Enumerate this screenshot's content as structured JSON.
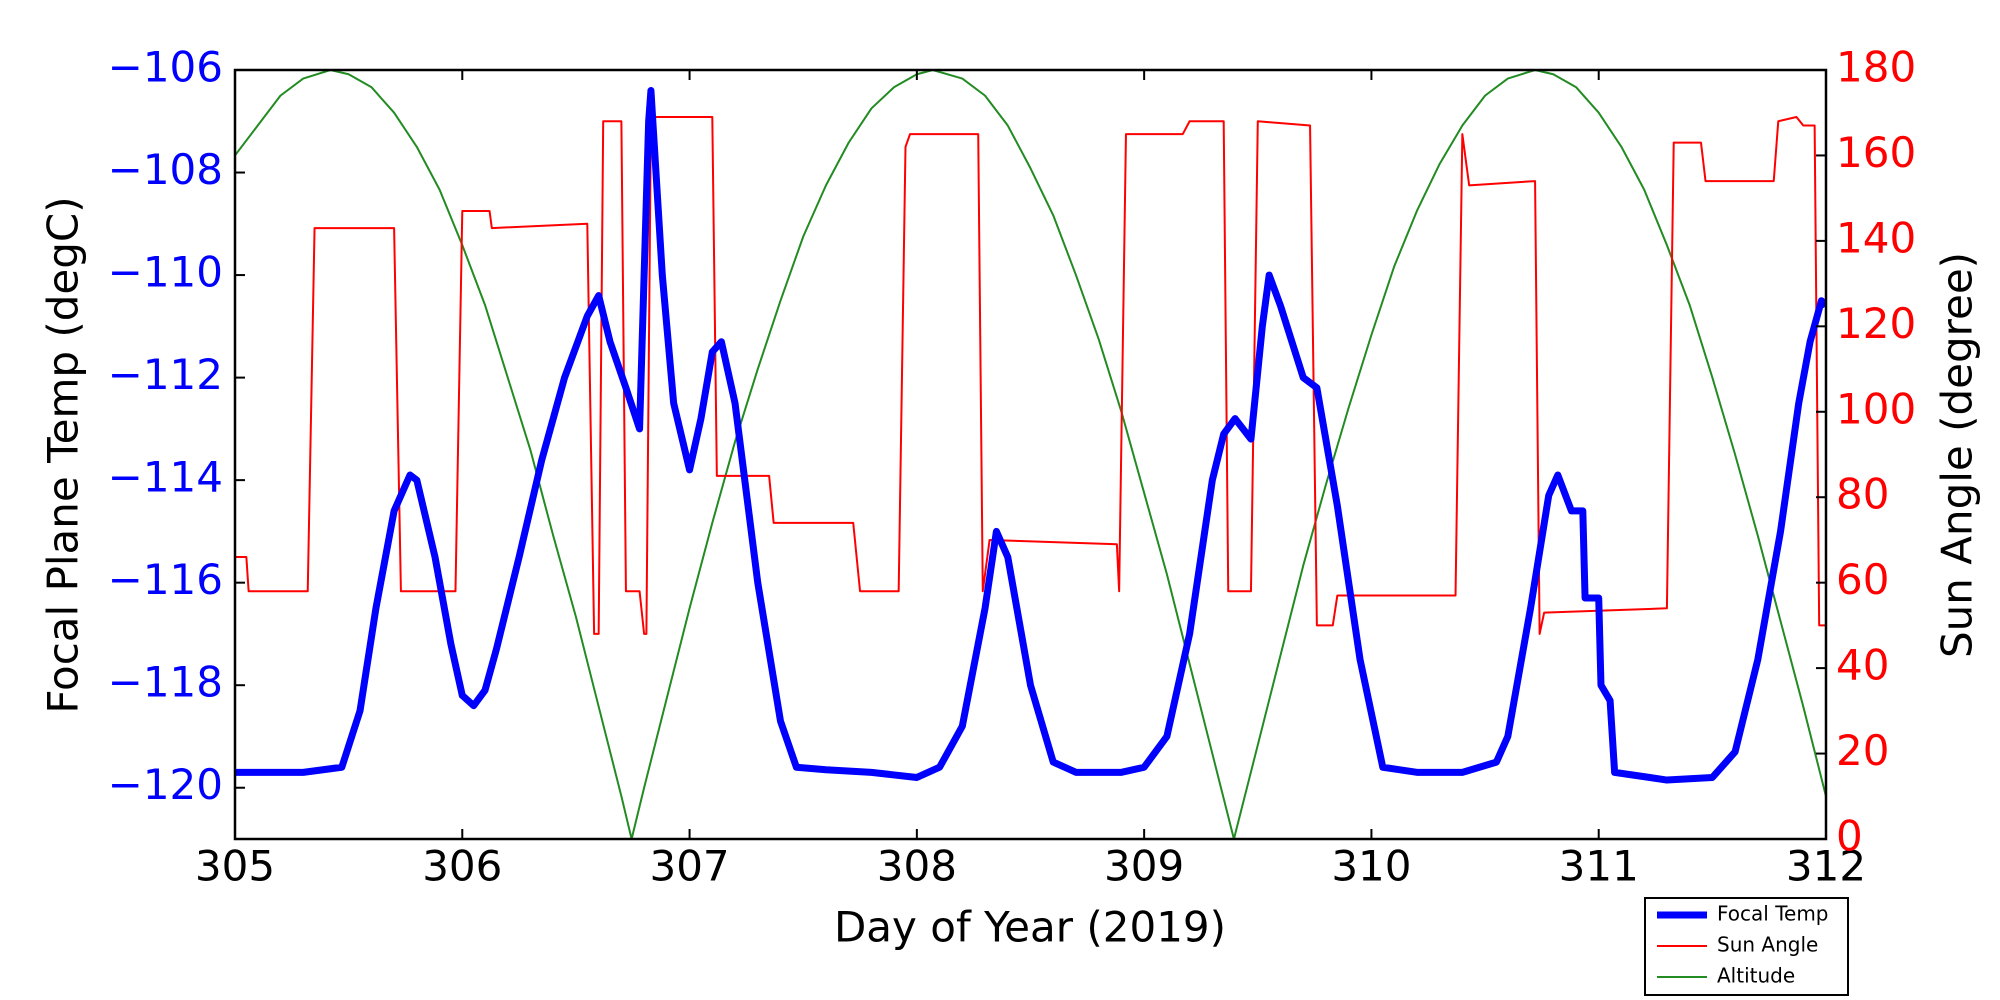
{
  "chart_data": {
    "type": "line",
    "xlabel": "Day of Year (2019)",
    "ylabel": "Focal Plane Temp (degC)",
    "y2label": "Sun Angle (degree)",
    "xlim": [
      305,
      312
    ],
    "ylim": [
      -121,
      -106
    ],
    "y2lim": [
      0,
      180
    ],
    "xticks": [
      305,
      306,
      307,
      308,
      309,
      310,
      311,
      312
    ],
    "yticks": [
      {
        "value": -120,
        "label": "−120"
      },
      {
        "value": -118,
        "label": "−118"
      },
      {
        "value": -116,
        "label": "−116"
      },
      {
        "value": -114,
        "label": "−114"
      },
      {
        "value": -112,
        "label": "−112"
      },
      {
        "value": -110,
        "label": "−110"
      },
      {
        "value": -108,
        "label": "−108"
      },
      {
        "value": -106,
        "label": "−106"
      }
    ],
    "y2ticks": [
      0,
      20,
      40,
      60,
      80,
      100,
      120,
      140,
      160,
      180
    ],
    "ytick_color": "#0000ff",
    "y2tick_color": "#ff0000",
    "grid": false,
    "legend": "lower right",
    "series": [
      {
        "name": "Focal Temp",
        "color": "#0000ff",
        "line_width": 7,
        "axis": "y",
        "x": [
          305.0,
          305.3,
          305.47,
          305.55,
          305.62,
          305.7,
          305.77,
          305.8,
          305.88,
          305.95,
          306.0,
          306.05,
          306.1,
          306.15,
          306.25,
          306.35,
          306.45,
          306.55,
          306.6,
          306.65,
          306.72,
          306.78,
          306.82,
          306.83,
          306.88,
          306.93,
          307.0,
          307.05,
          307.1,
          307.14,
          307.2,
          307.3,
          307.4,
          307.47,
          307.6,
          307.8,
          308.0,
          308.1,
          308.2,
          308.3,
          308.35,
          308.4,
          308.5,
          308.6,
          308.7,
          308.9,
          309.0,
          309.1,
          309.2,
          309.3,
          309.35,
          309.4,
          309.47,
          309.52,
          309.55,
          309.6,
          309.7,
          309.76,
          309.85,
          309.95,
          310.05,
          310.2,
          310.4,
          310.55,
          310.6,
          310.7,
          310.78,
          310.82,
          310.88,
          310.93,
          310.94,
          311.0,
          311.01,
          311.05,
          311.07,
          311.3,
          311.5,
          311.6,
          311.7,
          311.8,
          311.88,
          311.93,
          311.98,
          312.0
        ],
        "values": [
          -119.7,
          -119.7,
          -119.6,
          -118.5,
          -116.5,
          -114.6,
          -113.9,
          -114,
          -115.5,
          -117.2,
          -118.2,
          -118.4,
          -118.1,
          -117.3,
          -115.5,
          -113.6,
          -112,
          -110.8,
          -110.4,
          -111.3,
          -112.2,
          -113,
          -107,
          -106.4,
          -110,
          -112.5,
          -113.8,
          -112.8,
          -111.5,
          -111.3,
          -112.5,
          -116,
          -118.7,
          -119.6,
          -119.65,
          -119.7,
          -119.8,
          -119.6,
          -118.8,
          -116.5,
          -115,
          -115.5,
          -118,
          -119.5,
          -119.7,
          -119.7,
          -119.6,
          -119,
          -117,
          -114,
          -113.1,
          -112.8,
          -113.2,
          -111,
          -110,
          -110.6,
          -112,
          -112.2,
          -114.5,
          -117.5,
          -119.6,
          -119.7,
          -119.7,
          -119.5,
          -119,
          -116.5,
          -114.3,
          -113.9,
          -114.6,
          -114.6,
          -116.3,
          -116.3,
          -118,
          -118.3,
          -119.7,
          -119.85,
          -119.8,
          -119.3,
          -117.5,
          -115,
          -112.5,
          -111.3,
          -110.5,
          -110.6
        ]
      },
      {
        "name": "Sun Angle",
        "color": "#ff0000",
        "line_width": 2,
        "axis": "y2",
        "x": [
          305.0,
          305.05,
          305.06,
          305.32,
          305.35,
          305.7,
          305.73,
          305.97,
          306.0,
          306.12,
          306.13,
          306.55,
          306.58,
          306.6,
          306.62,
          306.7,
          306.72,
          306.78,
          306.8,
          306.81,
          306.83,
          307.1,
          307.12,
          307.35,
          307.37,
          307.72,
          307.75,
          307.92,
          307.95,
          307.97,
          308.27,
          308.29,
          308.32,
          308.88,
          308.89,
          308.92,
          309.17,
          309.2,
          309.35,
          309.37,
          309.47,
          309.5,
          309.73,
          309.76,
          309.83,
          309.85,
          310.37,
          310.4,
          310.43,
          310.72,
          310.74,
          310.76,
          311.3,
          311.33,
          311.45,
          311.47,
          311.77,
          311.79,
          311.87,
          311.9,
          311.95,
          311.97,
          312.0
        ],
        "values": [
          66,
          66,
          58,
          58,
          143,
          143,
          58,
          58,
          147,
          147,
          143,
          144,
          48,
          48,
          168,
          168,
          58,
          58,
          48,
          48,
          169,
          169,
          85,
          85,
          74,
          74,
          58,
          58,
          162,
          165,
          165,
          58,
          70,
          69,
          58,
          165,
          165,
          168,
          168,
          58,
          58,
          168,
          167,
          50,
          50,
          57,
          57,
          165,
          153,
          154,
          48,
          53,
          54,
          163,
          163,
          154,
          154,
          168,
          169,
          167,
          167,
          50,
          50
        ]
      },
      {
        "name": "Altitude",
        "color": "#228b22",
        "line_width": 2,
        "axis": "y2",
        "x": [
          305.0,
          305.1,
          305.2,
          305.3,
          305.42,
          305.5,
          305.6,
          305.7,
          305.8,
          305.9,
          306.0,
          306.1,
          306.2,
          306.3,
          306.4,
          306.5,
          306.6,
          306.7,
          306.745,
          306.8,
          306.9,
          307.0,
          307.1,
          307.2,
          307.3,
          307.4,
          307.5,
          307.6,
          307.7,
          307.8,
          307.9,
          308.0,
          308.07,
          308.2,
          308.3,
          308.4,
          308.5,
          308.6,
          308.7,
          308.8,
          308.9,
          309.0,
          309.1,
          309.2,
          309.3,
          309.395,
          309.5,
          309.6,
          309.7,
          309.8,
          309.9,
          310.0,
          310.1,
          310.2,
          310.3,
          310.4,
          310.5,
          310.6,
          310.72,
          310.8,
          310.9,
          311.0,
          311.1,
          311.2,
          311.3,
          311.4,
          311.5,
          311.6,
          311.7,
          311.8,
          311.9,
          312.0
        ],
        "values": [
          160,
          167,
          174,
          178,
          180,
          179,
          176,
          170,
          162,
          152,
          139,
          125,
          108,
          91,
          71,
          52,
          31,
          10,
          0,
          12,
          33,
          54,
          74,
          93,
          110,
          126,
          141,
          153,
          163,
          171,
          176,
          179,
          180,
          178,
          174,
          167,
          157,
          146,
          132,
          117,
          100,
          81,
          62,
          41,
          20,
          0,
          22,
          43,
          64,
          83,
          101,
          118,
          134,
          147,
          158,
          167,
          174,
          178,
          180,
          179,
          176,
          170,
          162,
          152,
          139,
          125,
          108,
          90,
          71,
          51,
          31,
          10
        ]
      }
    ]
  }
}
